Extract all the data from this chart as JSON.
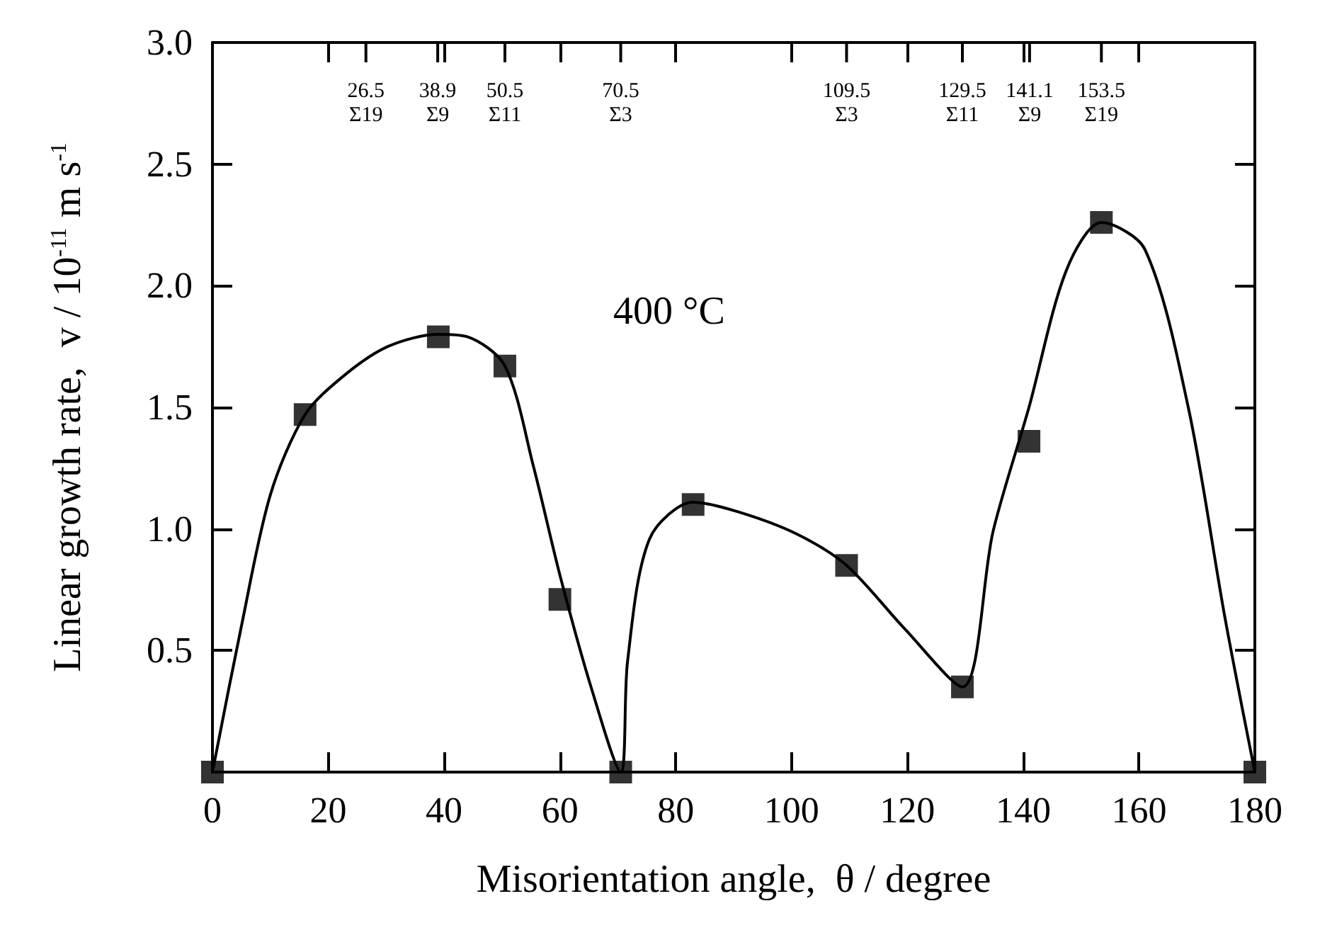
{
  "chart_data": {
    "type": "scatter",
    "xlabel": "Misorientation angle,  θ / degree",
    "ylabel": "Linear growth rate,  v / 10$^{-11}$ m s$^{-1}$",
    "xlim": [
      0,
      180
    ],
    "xticks": [
      0,
      20,
      40,
      60,
      80,
      100,
      120,
      140,
      160,
      180
    ],
    "ylim": [
      0,
      3
    ],
    "yticks": [
      {
        "value": 0.5,
        "label": "0.5"
      },
      {
        "value": 1,
        "label": "1.0"
      },
      {
        "value": 1.5,
        "label": "1.5"
      },
      {
        "value": 2,
        "label": "2.0"
      },
      {
        "value": 2.5,
        "label": "2.5"
      },
      {
        "value": 3,
        "label": "3.0"
      }
    ],
    "ref_lines": [
      {
        "axis": "x",
        "value": 26.5,
        "label": "26.5\nΣ19"
      },
      {
        "axis": "x",
        "value": 38.9,
        "label": "38.9\nΣ9"
      },
      {
        "axis": "x",
        "value": 50.5,
        "label": "50.5\nΣ11"
      },
      {
        "axis": "x",
        "value": 70.5,
        "label": "70.5\nΣ3"
      },
      {
        "axis": "x",
        "value": 109.5,
        "label": "109.5\nΣ3"
      },
      {
        "axis": "x",
        "value": 129.5,
        "label": "129.5\nΣ11"
      },
      {
        "axis": "x",
        "value": 141.1,
        "label": "141.1\nΣ9"
      },
      {
        "axis": "x",
        "value": 153.5,
        "label": "153.5\nΣ19"
      }
    ],
    "grid": false,
    "series": [
      {
        "marker": "square",
        "color": "#000000",
        "x": [
          0,
          16,
          39,
          50.5,
          60,
          70.5,
          83,
          109.5,
          129.5,
          141,
          153.5,
          180
        ],
        "values": [
          0,
          1.47,
          1.79,
          1.67,
          0.71,
          0,
          1.1,
          0.85,
          0.35,
          1.36,
          2.26,
          0
        ]
      },
      {
        "type": "line",
        "marker": "none",
        "line_style": "solid",
        "color": "#000000",
        "x": [
          0,
          5,
          10,
          16,
          22.7,
          30.3,
          39,
          44,
          50.5,
          55.4,
          60,
          65.5,
          70.5,
          71.7,
          75.5,
          83,
          90.8,
          100.8,
          109.5,
          119.5,
          129.5,
          134.8,
          141,
          147.4,
          153.5,
          161,
          168.5,
          174.8,
          180
        ],
        "values": [
          0,
          0.6,
          1.14,
          1.47,
          1.63,
          1.75,
          1.8,
          1.79,
          1.67,
          1.26,
          0.81,
          0.34,
          0,
          0.46,
          0.96,
          1.11,
          1.07,
          0.98,
          0.85,
          0.59,
          0.35,
          0.99,
          1.5,
          2.06,
          2.26,
          2.15,
          1.5,
          0.64,
          0
        ]
      }
    ],
    "annotations": [
      "400 °C"
    ]
  }
}
